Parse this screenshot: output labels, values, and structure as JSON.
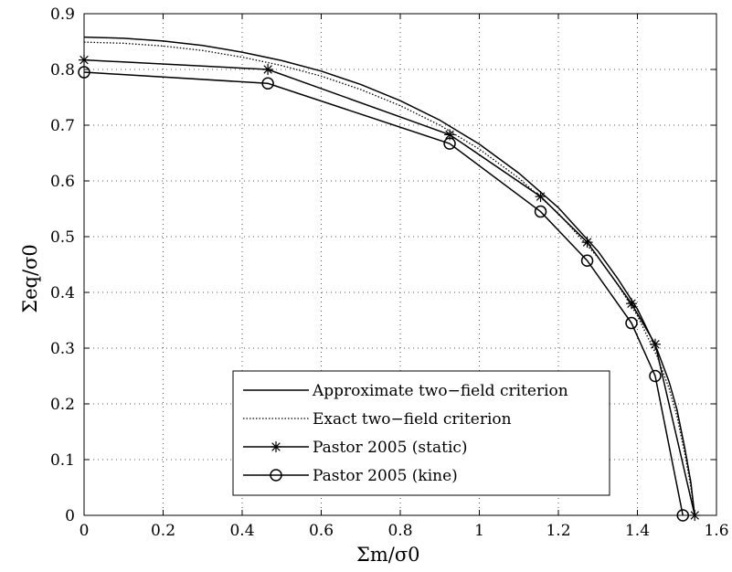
{
  "chart_data": {
    "type": "line",
    "xlabel": "Σm/σ0",
    "ylabel": "Σeq/σ0",
    "xlim": [
      0,
      1.6
    ],
    "ylim": [
      0,
      0.9
    ],
    "xticks": [
      0,
      0.2,
      0.4,
      0.6,
      0.8,
      1,
      1.2,
      1.4,
      1.6
    ],
    "xtick_labels": [
      "0",
      "0.2",
      "0.4",
      "0.6",
      "0.8",
      "1",
      "1.2",
      "1.4",
      "1.6"
    ],
    "yticks": [
      0,
      0.1,
      0.2,
      0.3,
      0.4,
      0.5,
      0.6,
      0.7,
      0.8,
      0.9
    ],
    "ytick_labels": [
      "0",
      "0.1",
      "0.2",
      "0.3",
      "0.4",
      "0.5",
      "0.6",
      "0.7",
      "0.8",
      "0.9"
    ],
    "grid": true,
    "legend_position": "bottom-center",
    "series": [
      {
        "name": "Approximate two−field criterion",
        "style": "solid",
        "marker": "none",
        "color": "#000000",
        "x": [
          0,
          0.1,
          0.2,
          0.3,
          0.4,
          0.5,
          0.6,
          0.7,
          0.8,
          0.9,
          1.0,
          1.1,
          1.2,
          1.3,
          1.35,
          1.4,
          1.45,
          1.48,
          1.5,
          1.52,
          1.535,
          1.545
        ],
        "y": [
          0.858,
          0.856,
          0.851,
          0.843,
          0.831,
          0.816,
          0.797,
          0.773,
          0.744,
          0.709,
          0.666,
          0.614,
          0.552,
          0.474,
          0.425,
          0.37,
          0.297,
          0.24,
          0.19,
          0.12,
          0.06,
          0
        ]
      },
      {
        "name": "Exact two−field criterion",
        "style": "dotted",
        "marker": "none",
        "color": "#000000",
        "x": [
          0,
          0.1,
          0.2,
          0.3,
          0.4,
          0.5,
          0.6,
          0.7,
          0.8,
          0.9,
          1.0,
          1.1,
          1.2,
          1.3,
          1.35,
          1.4,
          1.45,
          1.48,
          1.5,
          1.52,
          1.535,
          1.545
        ],
        "y": [
          0.849,
          0.847,
          0.842,
          0.834,
          0.822,
          0.807,
          0.788,
          0.764,
          0.735,
          0.7,
          0.657,
          0.605,
          0.542,
          0.463,
          0.414,
          0.358,
          0.285,
          0.228,
          0.178,
          0.11,
          0.052,
          0
        ]
      },
      {
        "name": "Pastor 2005 (static)",
        "style": "solid",
        "marker": "asterisk",
        "color": "#000000",
        "x": [
          0,
          0.465,
          0.925,
          1.155,
          1.273,
          1.385,
          1.445,
          1.545
        ],
        "y": [
          0.817,
          0.8,
          0.683,
          0.572,
          0.49,
          0.38,
          0.307,
          0
        ]
      },
      {
        "name": "Pastor 2005 (kine)",
        "style": "solid",
        "marker": "circle",
        "color": "#000000",
        "x": [
          0,
          0.465,
          0.925,
          1.155,
          1.273,
          1.385,
          1.445,
          1.515
        ],
        "y": [
          0.795,
          0.775,
          0.667,
          0.545,
          0.457,
          0.345,
          0.25,
          0
        ]
      }
    ]
  }
}
